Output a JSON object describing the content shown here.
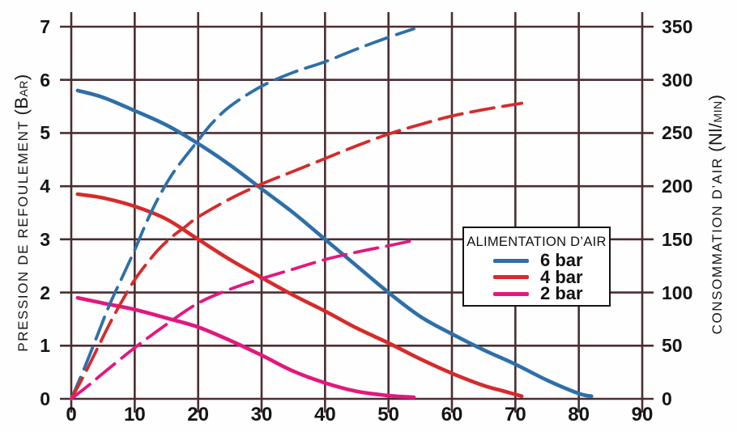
{
  "colors": {
    "grid": "#4b2d32",
    "background": "#fefefe",
    "text": "#151515",
    "blue": "#2e6fa9",
    "red": "#d62b2b",
    "pink": "#e2187d"
  },
  "chart_data": {
    "type": "line",
    "grid": "on",
    "x_axis": {
      "min": 0,
      "max": 90,
      "ticks": [
        0,
        10,
        20,
        30,
        40,
        50,
        60,
        70,
        80,
        90
      ]
    },
    "y_left_axis": {
      "label": "PRESSION DE REFOULEMENT (BAR)",
      "label_main": "PRESSION DE REFOULEMENT ",
      "label_unit_big": "(B",
      "label_unit_small": "AR",
      "label_unit_close": ")",
      "min": 0,
      "max": 7,
      "ticks": [
        0,
        1,
        2,
        3,
        4,
        5,
        6,
        7
      ]
    },
    "y_right_axis": {
      "label": "CONSOMMATION D'AIR (Nl/MIN)",
      "label_main": "CONSOMMATION D’AIR ",
      "label_unit_big": "(Nl/",
      "label_unit_small": "MIN",
      "label_unit_close": ")",
      "min": 0,
      "max": 350,
      "ticks": [
        0,
        50,
        100,
        150,
        200,
        250,
        300,
        350
      ]
    },
    "legend": {
      "title": "ALIMENTATION D’AIR",
      "entries": [
        {
          "label": "6 bar",
          "color": "#2e6fa9"
        },
        {
          "label": "4 bar",
          "color": "#d62b2b"
        },
        {
          "label": "2 bar",
          "color": "#e2187d"
        }
      ]
    },
    "series": [
      {
        "name": "pression 6 bar",
        "axis": "left",
        "line": "solid",
        "color": "#2e6fa9",
        "points": [
          [
            1,
            5.8
          ],
          [
            5,
            5.67
          ],
          [
            10,
            5.42
          ],
          [
            15,
            5.15
          ],
          [
            20,
            4.8
          ],
          [
            25,
            4.4
          ],
          [
            30,
            3.95
          ],
          [
            35,
            3.5
          ],
          [
            40,
            3.0
          ],
          [
            45,
            2.5
          ],
          [
            50,
            2.0
          ],
          [
            55,
            1.55
          ],
          [
            60,
            1.22
          ],
          [
            65,
            0.92
          ],
          [
            70,
            0.65
          ],
          [
            75,
            0.35
          ],
          [
            80,
            0.1
          ],
          [
            82,
            0.05
          ]
        ]
      },
      {
        "name": "pression 4 bar",
        "axis": "left",
        "line": "solid",
        "color": "#d62b2b",
        "points": [
          [
            1,
            3.85
          ],
          [
            5,
            3.78
          ],
          [
            10,
            3.62
          ],
          [
            15,
            3.38
          ],
          [
            20,
            3.0
          ],
          [
            25,
            2.62
          ],
          [
            30,
            2.28
          ],
          [
            35,
            1.95
          ],
          [
            40,
            1.65
          ],
          [
            45,
            1.33
          ],
          [
            50,
            1.05
          ],
          [
            55,
            0.75
          ],
          [
            60,
            0.48
          ],
          [
            65,
            0.25
          ],
          [
            68,
            0.15
          ],
          [
            71,
            0.05
          ]
        ]
      },
      {
        "name": "pression 2 bar",
        "axis": "left",
        "line": "solid",
        "color": "#e2187d",
        "points": [
          [
            1,
            1.9
          ],
          [
            5,
            1.8
          ],
          [
            10,
            1.68
          ],
          [
            15,
            1.52
          ],
          [
            20,
            1.35
          ],
          [
            25,
            1.1
          ],
          [
            30,
            0.82
          ],
          [
            35,
            0.52
          ],
          [
            40,
            0.3
          ],
          [
            45,
            0.14
          ],
          [
            50,
            0.06
          ],
          [
            54,
            0.03
          ]
        ]
      },
      {
        "name": "consommation 6 bar",
        "axis": "right",
        "line": "dashed",
        "color": "#2e6fa9",
        "points": [
          [
            0,
            0
          ],
          [
            2,
            28
          ],
          [
            4,
            58
          ],
          [
            6,
            88
          ],
          [
            8,
            114
          ],
          [
            10,
            140
          ],
          [
            12,
            168
          ],
          [
            14,
            192
          ],
          [
            16,
            212
          ],
          [
            18,
            228
          ],
          [
            20,
            243
          ],
          [
            22,
            258
          ],
          [
            25,
            275
          ],
          [
            30,
            294
          ],
          [
            35,
            307
          ],
          [
            40,
            317
          ],
          [
            45,
            329
          ],
          [
            50,
            340
          ],
          [
            54,
            348
          ]
        ]
      },
      {
        "name": "consommation 4 bar",
        "axis": "right",
        "line": "dashed",
        "color": "#d62b2b",
        "points": [
          [
            0,
            0
          ],
          [
            2,
            22
          ],
          [
            4,
            46
          ],
          [
            6,
            70
          ],
          [
            8,
            92
          ],
          [
            10,
            112
          ],
          [
            12,
            128
          ],
          [
            14,
            142
          ],
          [
            16,
            153
          ],
          [
            18,
            162
          ],
          [
            20,
            171
          ],
          [
            25,
            188
          ],
          [
            30,
            202
          ],
          [
            35,
            214
          ],
          [
            40,
            226
          ],
          [
            45,
            238
          ],
          [
            50,
            249
          ],
          [
            55,
            258
          ],
          [
            60,
            266
          ],
          [
            65,
            272
          ],
          [
            71,
            278
          ]
        ]
      },
      {
        "name": "consommation 2 bar",
        "axis": "right",
        "line": "dashed",
        "color": "#e2187d",
        "points": [
          [
            0,
            0
          ],
          [
            3,
            14
          ],
          [
            5,
            24
          ],
          [
            10,
            48
          ],
          [
            15,
            70
          ],
          [
            20,
            90
          ],
          [
            25,
            103
          ],
          [
            30,
            113
          ],
          [
            35,
            122
          ],
          [
            40,
            131
          ],
          [
            45,
            138
          ],
          [
            50,
            144
          ],
          [
            54,
            149
          ]
        ]
      }
    ]
  }
}
